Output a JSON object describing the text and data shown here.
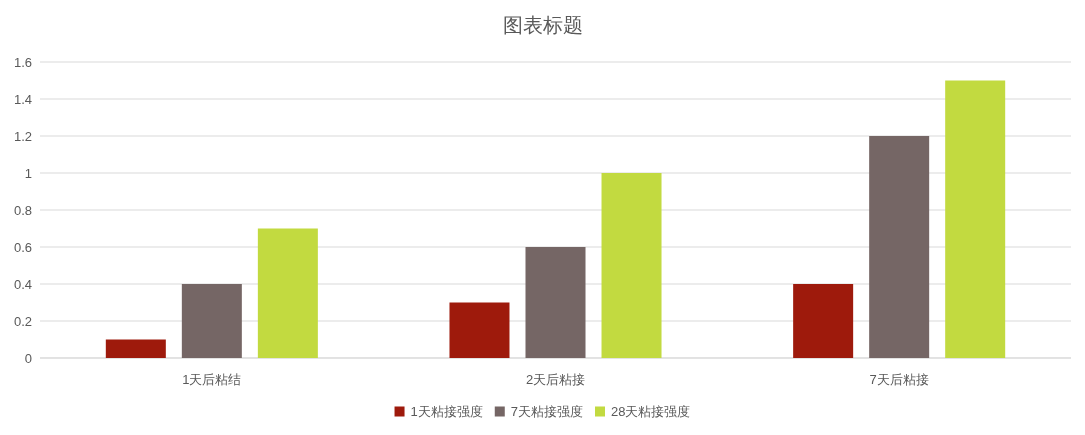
{
  "chart_data": {
    "type": "bar",
    "title": "图表标题",
    "categories": [
      "1天后粘结",
      "2天后粘接",
      "7天后粘接"
    ],
    "series": [
      {
        "name": "1天粘接强度",
        "color": "#9e1a0c",
        "values": [
          0.1,
          0.3,
          0.4
        ]
      },
      {
        "name": "7天粘接强度",
        "color": "#756665",
        "values": [
          0.4,
          0.6,
          1.2
        ]
      },
      {
        "name": "28天粘接强度",
        "color": "#c2da40",
        "values": [
          0.7,
          1.0,
          1.5
        ]
      }
    ],
    "ylim": [
      0,
      1.6
    ],
    "yticks": [
      0,
      0.2,
      0.4,
      0.6,
      0.8,
      1,
      1.2,
      1.4,
      1.6
    ],
    "grid": "y",
    "legend": "bottom"
  }
}
